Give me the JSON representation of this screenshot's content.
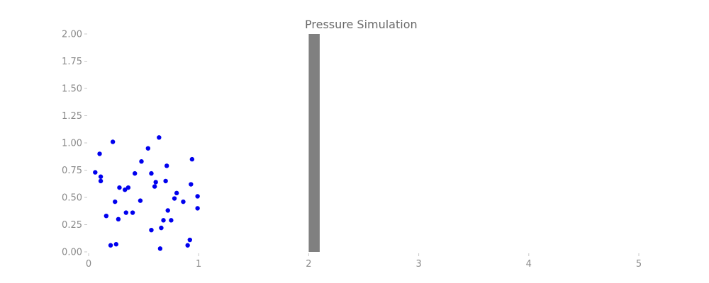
{
  "chart_data": {
    "type": "scatter",
    "title": "Pressure Simulation",
    "xlabel": "",
    "ylabel": "",
    "xlim": [
      0,
      5
    ],
    "ylim": [
      0,
      2
    ],
    "x_ticks": [
      "0",
      "1",
      "2",
      "3",
      "4",
      "5"
    ],
    "y_ticks": [
      "0.00",
      "0.25",
      "0.50",
      "0.75",
      "1.00",
      "1.25",
      "1.50",
      "1.75",
      "2.00"
    ],
    "grid": false,
    "legend": "none",
    "colors": {
      "points": "#0000ee",
      "bar": "#808080",
      "title": "#6b6b6b",
      "ticks": "#8a8a8a"
    },
    "bar": {
      "x_start": 2.0,
      "x_end": 2.1,
      "value": 2.0
    },
    "points": [
      {
        "x": 0.06,
        "y": 0.73
      },
      {
        "x": 0.1,
        "y": 0.9
      },
      {
        "x": 0.11,
        "y": 0.69
      },
      {
        "x": 0.11,
        "y": 0.65
      },
      {
        "x": 0.16,
        "y": 0.33
      },
      {
        "x": 0.2,
        "y": 0.06
      },
      {
        "x": 0.22,
        "y": 1.01
      },
      {
        "x": 0.24,
        "y": 0.46
      },
      {
        "x": 0.25,
        "y": 0.07
      },
      {
        "x": 0.27,
        "y": 0.3
      },
      {
        "x": 0.28,
        "y": 0.59
      },
      {
        "x": 0.33,
        "y": 0.57
      },
      {
        "x": 0.34,
        "y": 0.36
      },
      {
        "x": 0.36,
        "y": 0.59
      },
      {
        "x": 0.4,
        "y": 0.36
      },
      {
        "x": 0.42,
        "y": 0.72
      },
      {
        "x": 0.47,
        "y": 0.47
      },
      {
        "x": 0.48,
        "y": 0.83
      },
      {
        "x": 0.54,
        "y": 0.95
      },
      {
        "x": 0.57,
        "y": 0.72
      },
      {
        "x": 0.57,
        "y": 0.2
      },
      {
        "x": 0.6,
        "y": 0.6
      },
      {
        "x": 0.61,
        "y": 0.64
      },
      {
        "x": 0.64,
        "y": 1.05
      },
      {
        "x": 0.65,
        "y": 0.03
      },
      {
        "x": 0.66,
        "y": 0.22
      },
      {
        "x": 0.68,
        "y": 0.29
      },
      {
        "x": 0.7,
        "y": 0.65
      },
      {
        "x": 0.71,
        "y": 0.79
      },
      {
        "x": 0.72,
        "y": 0.38
      },
      {
        "x": 0.75,
        "y": 0.29
      },
      {
        "x": 0.78,
        "y": 0.49
      },
      {
        "x": 0.8,
        "y": 0.54
      },
      {
        "x": 0.86,
        "y": 0.46
      },
      {
        "x": 0.9,
        "y": 0.06
      },
      {
        "x": 0.92,
        "y": 0.11
      },
      {
        "x": 0.93,
        "y": 0.62
      },
      {
        "x": 0.94,
        "y": 0.85
      },
      {
        "x": 0.99,
        "y": 0.51
      },
      {
        "x": 0.99,
        "y": 0.4
      }
    ]
  }
}
